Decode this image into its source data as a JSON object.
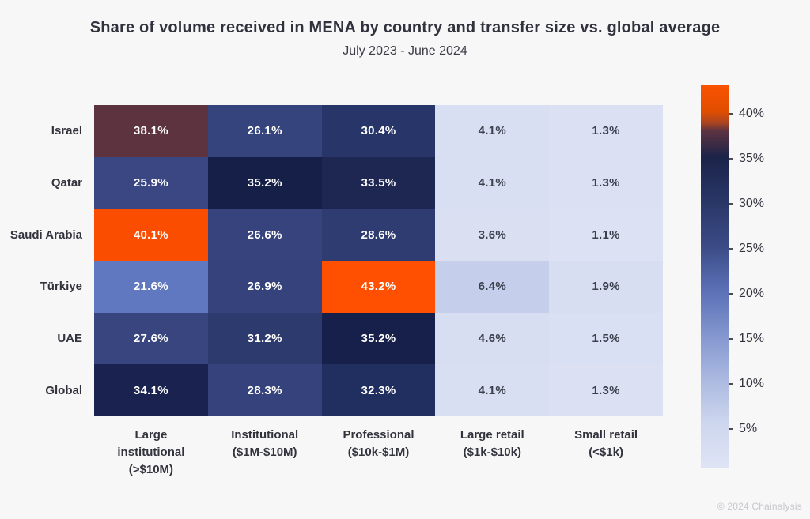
{
  "header": {
    "title": "Share of volume received in MENA by country and transfer size vs. global average",
    "subtitle": "July 2023 - June 2024"
  },
  "footer": {
    "copyright": "© 2024 Chainalysis"
  },
  "chart_data": {
    "type": "heatmap",
    "title": "Share of volume received in MENA by country and transfer size vs. global average",
    "subtitle": "July 2023 - June 2024",
    "rows": [
      "Israel",
      "Qatar",
      "Saudi Arabia",
      "Türkiye",
      "UAE",
      "Global"
    ],
    "columns": [
      "Large\ninstitutional\n(>$10M)",
      "Institutional\n($1M-$10M)",
      "Professional\n($10k-$1M)",
      "Large retail\n($1k-$10k)",
      "Small retail\n(<$1k)"
    ],
    "values": [
      [
        38.1,
        26.1,
        30.4,
        4.1,
        1.3
      ],
      [
        25.9,
        35.2,
        33.5,
        4.1,
        1.3
      ],
      [
        40.1,
        26.6,
        28.6,
        3.6,
        1.1
      ],
      [
        21.6,
        26.9,
        43.2,
        6.4,
        1.9
      ],
      [
        27.6,
        31.2,
        35.2,
        4.6,
        1.5
      ],
      [
        34.1,
        28.3,
        32.3,
        4.1,
        1.3
      ]
    ],
    "value_suffix": "%",
    "dark_text_below_value": 10,
    "cell_colors": [
      [
        "#5d3340",
        "#36447e",
        "#273568",
        "#d9dff2",
        "#dbe0f3"
      ],
      [
        "#3a4783",
        "#161f48",
        "#1d2752",
        "#d9dff2",
        "#dbe0f3"
      ],
      [
        "#fb4d00",
        "#36437d",
        "#2e3c72",
        "#dadff2",
        "#dce1f3"
      ],
      [
        "#5f78c0",
        "#35427b",
        "#fe5000",
        "#c5cfec",
        "#d8def1"
      ],
      [
        "#38457e",
        "#2c3a6e",
        "#17204a",
        "#d8def1",
        "#dae0f3"
      ],
      [
        "#1a2350",
        "#35427c",
        "#212e60",
        "#d9dff2",
        "#dbe0f3"
      ]
    ],
    "colorbar": {
      "scale_max": 43.2,
      "scale_min": 0.7,
      "ticks": [
        {
          "value": 40,
          "label": "40%"
        },
        {
          "value": 35,
          "label": "35%"
        },
        {
          "value": 30,
          "label": "30%"
        },
        {
          "value": 25,
          "label": "25%"
        },
        {
          "value": 20,
          "label": "20%"
        },
        {
          "value": 15,
          "label": "15%"
        },
        {
          "value": 10,
          "label": "10%"
        },
        {
          "value": 5,
          "label": "5%"
        }
      ],
      "gradient_stops": [
        {
          "pos": 0,
          "color": "#fb5200"
        },
        {
          "pos": 7,
          "color": "#e04e00"
        },
        {
          "pos": 10,
          "color": "#ab4420"
        },
        {
          "pos": 12,
          "color": "#5d3340"
        },
        {
          "pos": 19,
          "color": "#1b2349"
        },
        {
          "pos": 30.6,
          "color": "#293767"
        },
        {
          "pos": 42,
          "color": "#3b4a85"
        },
        {
          "pos": 53.6,
          "color": "#5a70b6"
        },
        {
          "pos": 65.1,
          "color": "#8295ce"
        },
        {
          "pos": 76.6,
          "color": "#aab8e0"
        },
        {
          "pos": 88.2,
          "color": "#cdd6ee"
        },
        {
          "pos": 100,
          "color": "#dfe4f5"
        }
      ]
    }
  }
}
